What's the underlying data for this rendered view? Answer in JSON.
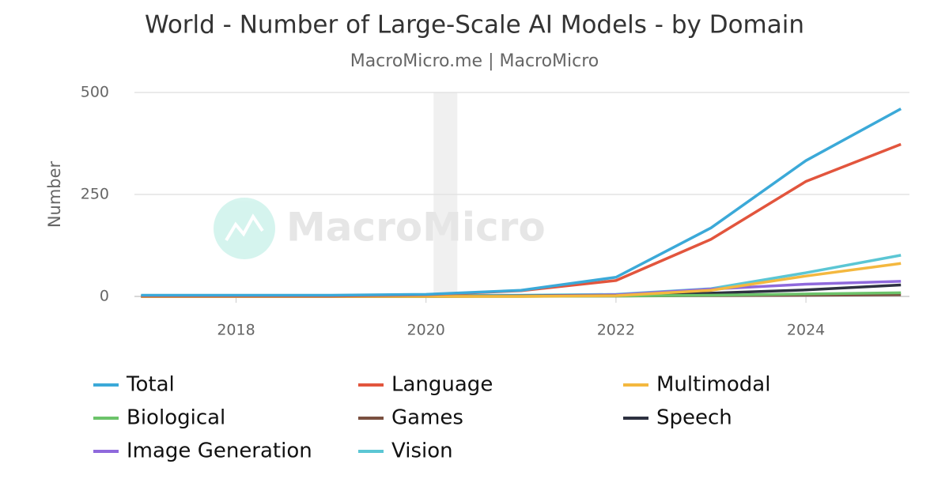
{
  "chart_data": {
    "type": "line",
    "title": "World - Number of Large-Scale AI Models - by Domain",
    "subtitle": "MacroMicro.me | MacroMicro",
    "watermark": "MacroMicro",
    "y_label": "Number",
    "x": [
      2017,
      2018,
      2019,
      2020,
      2021,
      2022,
      2023,
      2024,
      2025
    ],
    "xlim": [
      2016.93,
      2025.09
    ],
    "xticks": [
      2018,
      2020,
      2022,
      2024
    ],
    "ylim": [
      0,
      500
    ],
    "yticks": [
      0,
      250,
      500
    ],
    "grid": true,
    "shaded_band": [
      2020.08,
      2020.33
    ],
    "series": [
      {
        "name": "Total",
        "color": "#3ba9d8",
        "values": [
          3,
          3,
          3,
          5,
          15,
          47,
          168,
          333,
          460
        ]
      },
      {
        "name": "Language",
        "color": "#e2553d",
        "values": [
          1,
          1,
          1,
          4,
          14,
          39,
          140,
          282,
          373
        ]
      },
      {
        "name": "Multimodal",
        "color": "#f4b83f",
        "values": [
          0,
          0,
          0,
          0,
          0,
          2,
          15,
          50,
          81
        ]
      },
      {
        "name": "Biological",
        "color": "#6cc36a",
        "values": [
          0,
          0,
          0,
          0,
          0,
          1,
          3,
          6,
          9
        ]
      },
      {
        "name": "Games",
        "color": "#7a5040",
        "values": [
          0,
          0,
          0,
          1,
          1,
          1,
          2,
          3,
          4
        ]
      },
      {
        "name": "Speech",
        "color": "#2d3140",
        "values": [
          0,
          0,
          0,
          0,
          1,
          2,
          8,
          16,
          28
        ]
      },
      {
        "name": "Image Generation",
        "color": "#8f69dc",
        "values": [
          0,
          0,
          0,
          0,
          1,
          4,
          18,
          30,
          37
        ]
      },
      {
        "name": "Vision",
        "color": "#5bc6d4",
        "values": [
          1,
          1,
          1,
          2,
          3,
          5,
          19,
          58,
          101
        ]
      }
    ]
  }
}
